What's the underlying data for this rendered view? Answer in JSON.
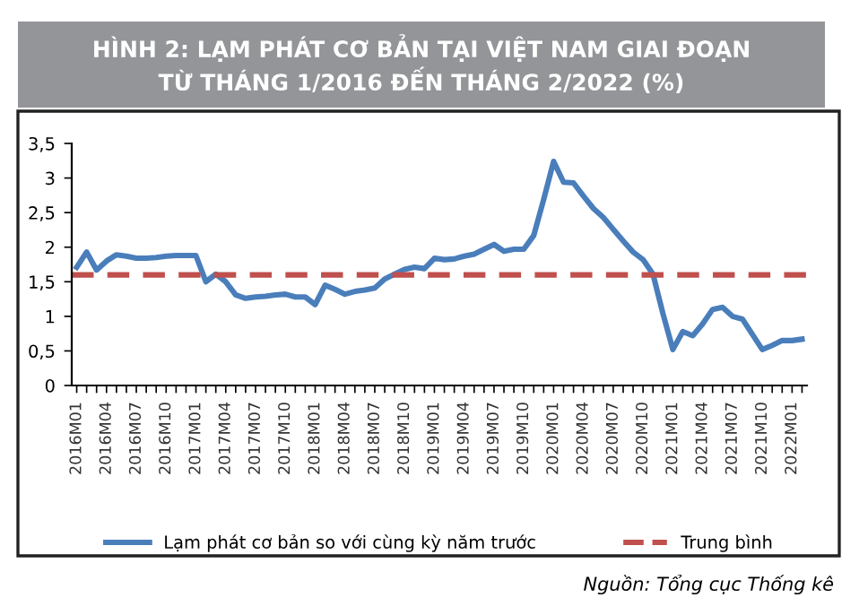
{
  "chart_data": {
    "type": "line",
    "title": "HÌNH 2: LẠM PHÁT CƠ BẢN TẠI VIỆT NAM GIAI ĐOẠN\nTỪ THÁNG 1/2016 ĐẾN THÁNG 2/2022 (%)",
    "categories": [
      "2016M01",
      null,
      null,
      "2016M04",
      null,
      null,
      "2016M07",
      null,
      null,
      "2016M10",
      null,
      null,
      "2017M01",
      null,
      null,
      "2017M04",
      null,
      null,
      "2017M07",
      null,
      null,
      "2017M10",
      null,
      null,
      "2018M01",
      null,
      null,
      "2018M04",
      null,
      null,
      "2018M07",
      null,
      null,
      "2018M10",
      null,
      null,
      "2019M01",
      null,
      null,
      "2019M04",
      null,
      null,
      "2019M07",
      null,
      null,
      "2019M10",
      null,
      null,
      "2020M01",
      null,
      null,
      "2020M04",
      null,
      null,
      "2020M07",
      null,
      null,
      "2020M10",
      null,
      null,
      "2021M01",
      null,
      null,
      "2021M04",
      null,
      null,
      "2021M07",
      null,
      null,
      "2021M10",
      null,
      null,
      "2022M01",
      null
    ],
    "series": [
      {
        "name": "Lạm phát cơ bản so với cùng kỳ năm trước",
        "color": "#4a7ebb",
        "values": [
          1.71,
          1.93,
          1.67,
          1.8,
          1.89,
          1.87,
          1.84,
          1.84,
          1.85,
          1.87,
          1.88,
          1.88,
          1.88,
          1.5,
          1.61,
          1.5,
          1.31,
          1.26,
          1.28,
          1.29,
          1.31,
          1.32,
          1.28,
          1.28,
          1.17,
          1.45,
          1.39,
          1.32,
          1.36,
          1.38,
          1.41,
          1.54,
          1.61,
          1.68,
          1.71,
          1.69,
          1.84,
          1.82,
          1.83,
          1.87,
          1.9,
          1.97,
          2.04,
          1.94,
          1.97,
          1.97,
          2.17,
          2.69,
          3.24,
          2.94,
          2.93,
          2.74,
          2.56,
          2.43,
          2.26,
          2.09,
          1.93,
          1.82,
          1.61,
          1.04,
          0.52,
          0.78,
          0.72,
          0.89,
          1.1,
          1.13,
          1.0,
          0.96,
          0.74,
          0.52,
          0.58,
          0.65,
          0.65,
          0.67
        ]
      }
    ],
    "ref_lines": [
      {
        "axis": "y",
        "value": 1.6,
        "label": "Trung bình",
        "color": "#c0504d",
        "line_style": "dashed"
      }
    ],
    "ylim": [
      0,
      3.5
    ],
    "yticks": [
      0,
      {
        "value": 0.5,
        "label": "0,5"
      },
      1,
      {
        "value": 1.5,
        "label": "1,5"
      },
      2,
      {
        "value": 2.5,
        "label": "2,5"
      },
      3,
      {
        "value": 3.5,
        "label": "3,5"
      }
    ],
    "grid": false,
    "legend": "bottom",
    "marker": "none",
    "line_style": "solid",
    "annotations": [
      "Nguồn: Tổng cục Thống kê"
    ]
  }
}
